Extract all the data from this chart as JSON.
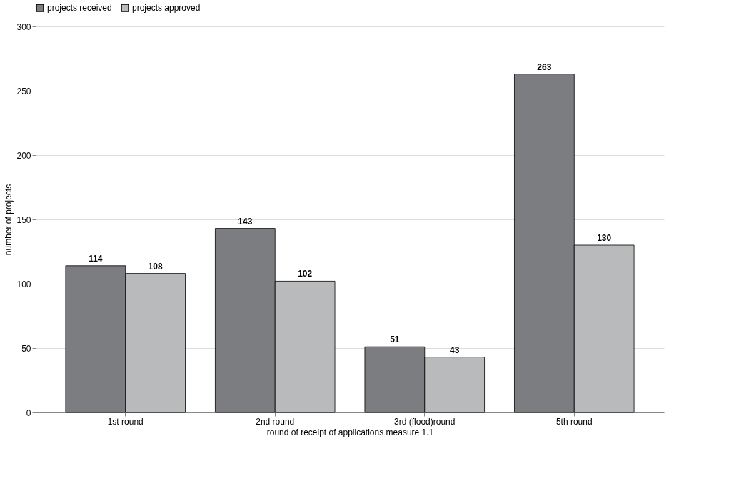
{
  "chart_data": {
    "type": "bar",
    "xlabel": "round of receipt of applications measure 1.1",
    "ylabel": "number of projects",
    "categories": [
      "1st round",
      "2nd round",
      "3rd (flood)round",
      "5th round"
    ],
    "series": [
      {
        "name": "projects received",
        "color": "#7b7d80",
        "values": [
          114,
          143,
          51,
          263
        ]
      },
      {
        "name": "projects approved",
        "color": "#b8babc",
        "values": [
          108,
          102,
          43,
          130
        ]
      }
    ],
    "ylim": [
      0,
      300
    ],
    "yticks": [
      0,
      50,
      100,
      150,
      200,
      250,
      300
    ],
    "grid": "y",
    "legend": "top",
    "data_labels": true
  }
}
